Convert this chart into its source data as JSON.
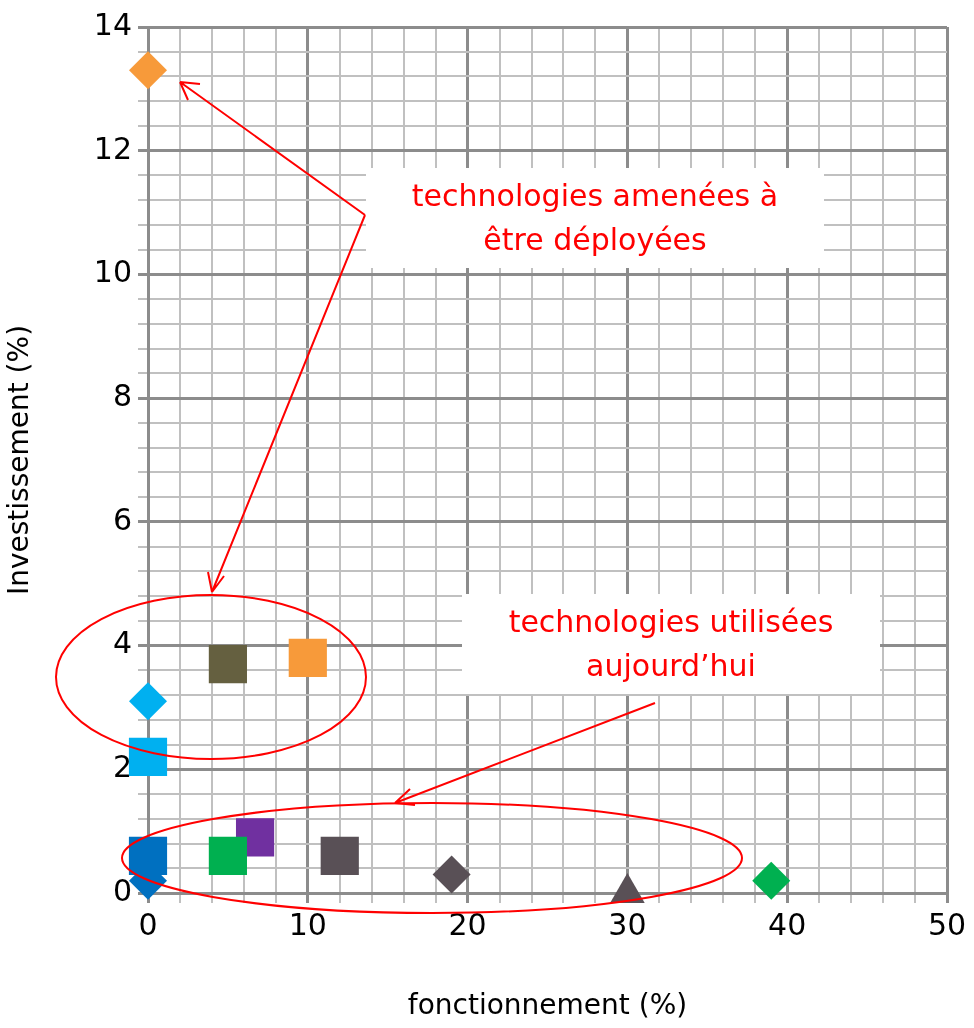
{
  "chart_data": {
    "type": "scatter",
    "xlabel": "fonctionnement (%)",
    "ylabel": "Investissement (%)",
    "xlim": [
      0,
      50
    ],
    "ylim": [
      0,
      14
    ],
    "xticks": [
      0,
      {
        "value": 2,
        "label": null
      },
      {
        "value": 4,
        "label": null
      },
      {
        "value": 6,
        "label": null
      },
      {
        "value": 8,
        "label": null
      },
      10,
      {
        "value": 12,
        "label": null
      },
      {
        "value": 14,
        "label": null
      },
      {
        "value": 16,
        "label": null
      },
      {
        "value": 18,
        "label": null
      },
      20,
      {
        "value": 22,
        "label": null
      },
      {
        "value": 24,
        "label": null
      },
      {
        "value": 26,
        "label": null
      },
      {
        "value": 28,
        "label": null
      },
      30,
      {
        "value": 32,
        "label": null
      },
      {
        "value": 34,
        "label": null
      },
      {
        "value": 36,
        "label": null
      },
      {
        "value": 38,
        "label": null
      },
      40,
      {
        "value": 42,
        "label": null
      },
      {
        "value": 44,
        "label": null
      },
      {
        "value": 46,
        "label": null
      },
      {
        "value": 48,
        "label": null
      },
      50
    ],
    "yticks": [
      0,
      {
        "value": 0.4,
        "label": null
      },
      {
        "value": 0.8,
        "label": null
      },
      {
        "value": 1.2,
        "label": null
      },
      {
        "value": 1.6,
        "label": null
      },
      2,
      {
        "value": 2.4,
        "label": null
      },
      {
        "value": 2.8,
        "label": null
      },
      {
        "value": 3.2,
        "label": null
      },
      {
        "value": 3.6,
        "label": null
      },
      4,
      {
        "value": 4.4,
        "label": null
      },
      {
        "value": 4.8,
        "label": null
      },
      {
        "value": 5.2,
        "label": null
      },
      {
        "value": 5.6,
        "label": null
      },
      6,
      {
        "value": 6.4,
        "label": null
      },
      {
        "value": 6.8,
        "label": null
      },
      {
        "value": 7.2,
        "label": null
      },
      {
        "value": 7.6,
        "label": null
      },
      8,
      {
        "value": 8.4,
        "label": null
      },
      {
        "value": 8.8,
        "label": null
      },
      {
        "value": 9.2,
        "label": null
      },
      {
        "value": 9.6,
        "label": null
      },
      10,
      {
        "value": 10.4,
        "label": null
      },
      {
        "value": 10.8,
        "label": null
      },
      {
        "value": 11.2,
        "label": null
      },
      {
        "value": 11.6,
        "label": null
      },
      12,
      {
        "value": 12.4,
        "label": null
      },
      {
        "value": 12.8,
        "label": null
      },
      {
        "value": 13.2,
        "label": null
      },
      {
        "value": 13.6,
        "label": null
      },
      14
    ],
    "grid": true,
    "series": [
      {
        "color": "#f79a3a",
        "marker": "diamond",
        "x": [
          0
        ],
        "values": [
          13.3
        ]
      },
      {
        "color": "#656040",
        "marker": "square",
        "x": [
          5
        ],
        "values": [
          3.7
        ]
      },
      {
        "color": "#f79a3a",
        "marker": "square",
        "x": [
          10
        ],
        "values": [
          3.8
        ]
      },
      {
        "color": "#00b0f0",
        "marker": "diamond",
        "x": [
          0
        ],
        "values": [
          3.1
        ]
      },
      {
        "color": "#00b0f0",
        "marker": "square",
        "x": [
          0
        ],
        "values": [
          2.2
        ]
      },
      {
        "color": "#0070c0",
        "marker": "diamond",
        "x": [
          0
        ],
        "values": [
          0.2
        ]
      },
      {
        "color": "#0070c0",
        "marker": "square",
        "x": [
          0
        ],
        "values": [
          0.6
        ]
      },
      {
        "color": "#00b050",
        "marker": "square",
        "x": [
          5
        ],
        "values": [
          0.6
        ]
      },
      {
        "color": "#7030a0",
        "marker": "square",
        "x": [
          6.7
        ],
        "values": [
          0.9
        ]
      },
      {
        "color": "#595056",
        "marker": "square",
        "x": [
          12
        ],
        "values": [
          0.6
        ]
      },
      {
        "color": "#595056",
        "marker": "diamond",
        "x": [
          19
        ],
        "values": [
          0.3
        ]
      },
      {
        "color": "#595056",
        "marker": "triangle",
        "x": [
          30
        ],
        "values": [
          0
        ]
      },
      {
        "color": "#00b050",
        "marker": "diamond",
        "x": [
          39
        ],
        "values": [
          0.2
        ]
      }
    ],
    "annotations": [
      "technologies amenées à être déployées",
      "technologies utilisées aujourd’hui"
    ]
  }
}
